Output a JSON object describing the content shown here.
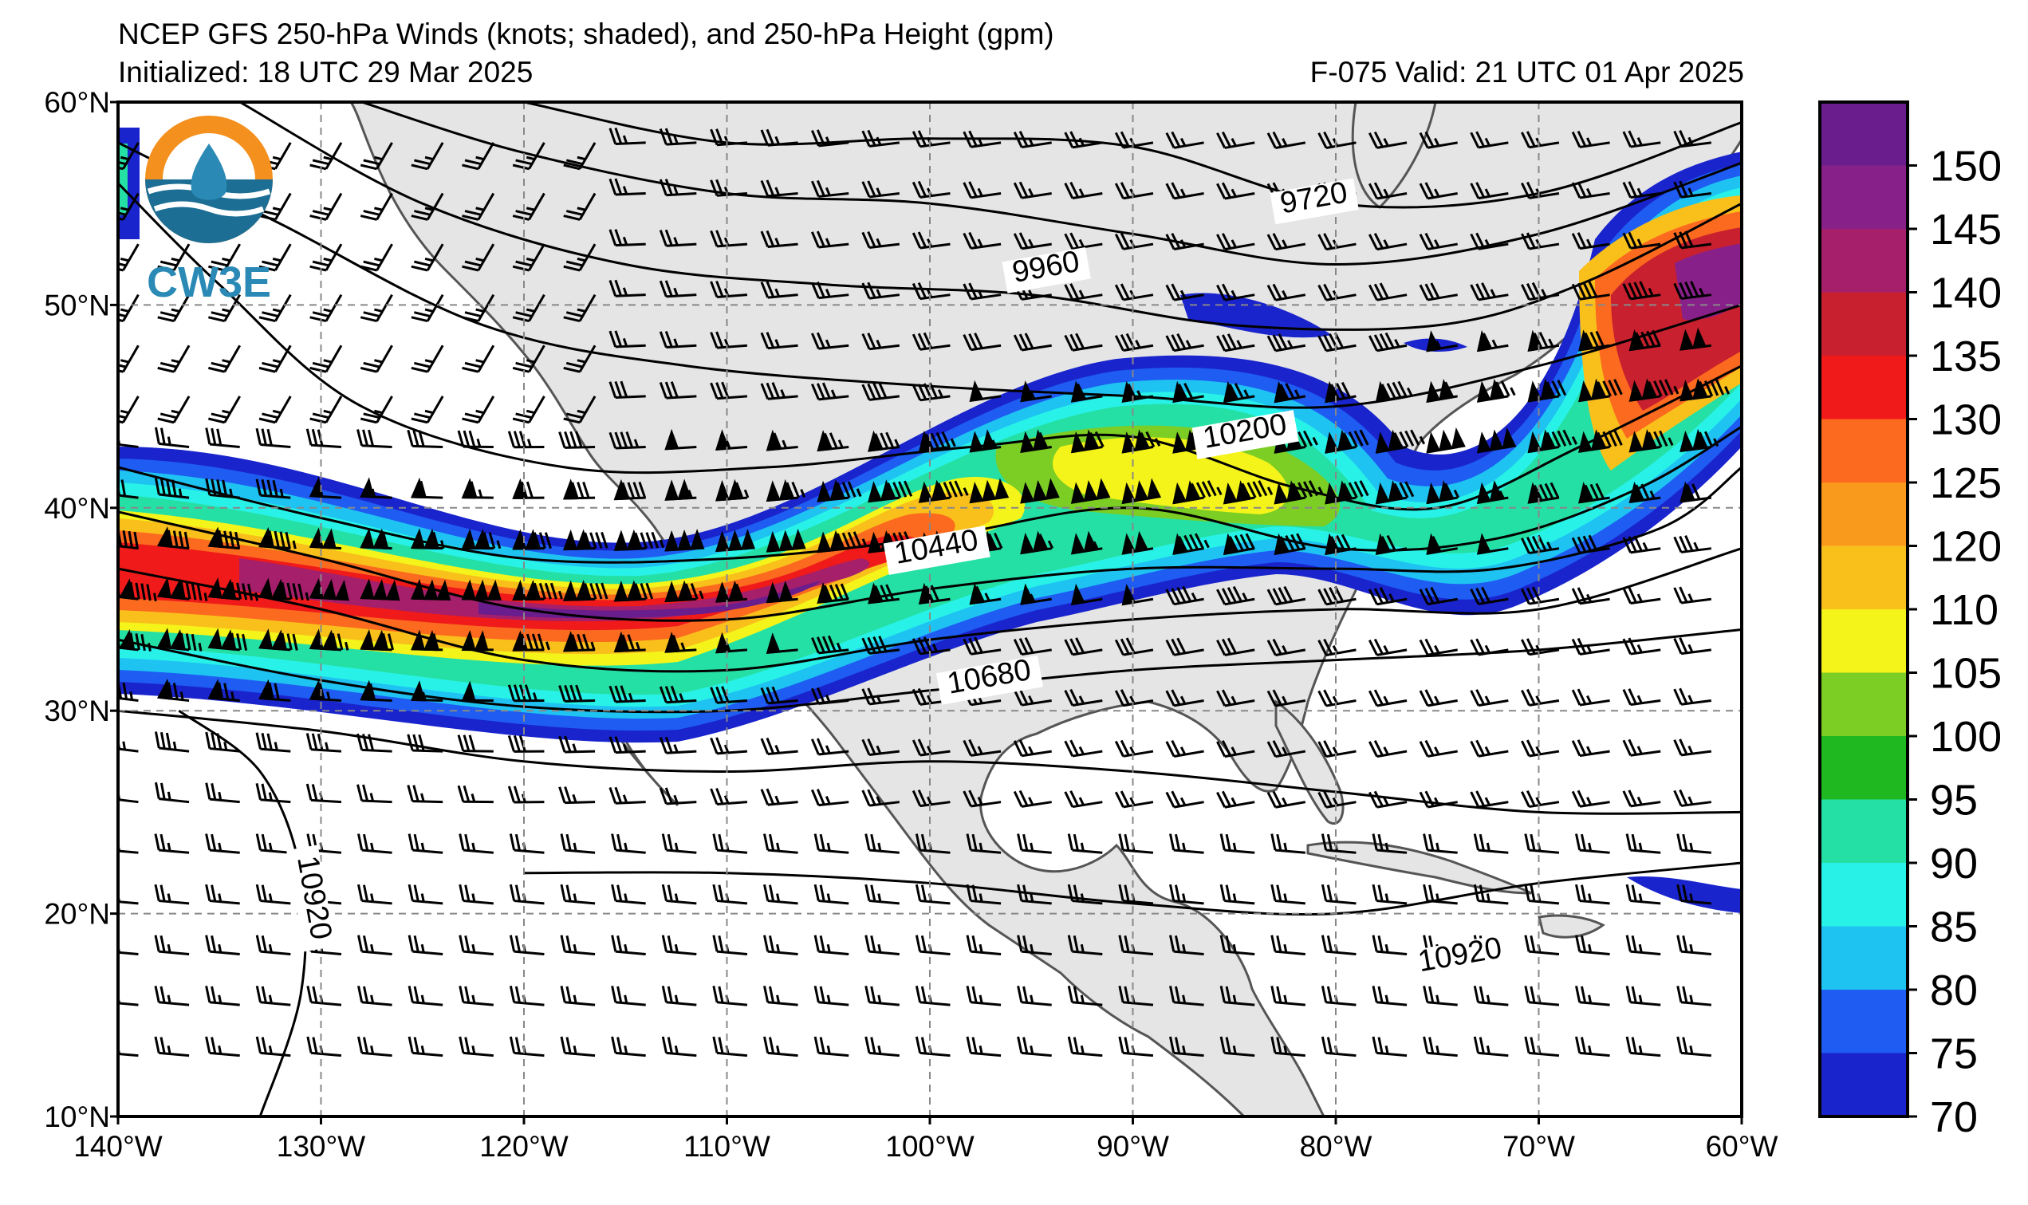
{
  "title": {
    "line1": "NCEP GFS 250-hPa Winds (knots; shaded), and 250-hPa Height (gpm)",
    "initialized": "Initialized: 18 UTC 29 Mar 2025",
    "valid": "F-075  Valid: 21 UTC 01 Apr 2025"
  },
  "logo": {
    "text": "CW3E"
  },
  "axes": {
    "lon_labels": [
      "140°W",
      "130°W",
      "120°W",
      "110°W",
      "100°W",
      "90°W",
      "80°W",
      "70°W",
      "60°W"
    ],
    "lat_labels": [
      "60°N",
      "50°N",
      "40°N",
      "30°N",
      "20°N",
      "10°N"
    ],
    "lon_range": [
      -140,
      -60
    ],
    "lat_range": [
      10,
      60
    ]
  },
  "colorbar": {
    "labels": [
      "150",
      "145",
      "140",
      "135",
      "130",
      "125",
      "120",
      "110",
      "105",
      "100",
      "95",
      "90",
      "85",
      "80",
      "75",
      "70"
    ],
    "colors": [
      "#6a1d8c",
      "#88208a",
      "#a51f6a",
      "#c8202f",
      "#f01a1a",
      "#fb6a1e",
      "#f99a1d",
      "#f9c01c",
      "#f4f41a",
      "#7ccd24",
      "#20b820",
      "#25e0a4",
      "#28f2e8",
      "#1ec3f2",
      "#1e5cf2",
      "#1a24cc"
    ]
  },
  "contour_labels": [
    {
      "text": "9720",
      "lon": -81,
      "lat": 54.8
    },
    {
      "text": "9960",
      "lon": -94.2,
      "lat": 51.4
    },
    {
      "text": "10200",
      "lon": -84.4,
      "lat": 43.3
    },
    {
      "text": "10440",
      "lon": -99.6,
      "lat": 37.6
    },
    {
      "text": "10680",
      "lon": -97,
      "lat": 31.2
    },
    {
      "text": "10920",
      "lon": -73.8,
      "lat": 17.5
    },
    {
      "text": "10920",
      "lon": -130.8,
      "lat": 20.7
    }
  ],
  "contour_lines": [
    {
      "value": 9720,
      "pts": [
        [
          -120,
          60
        ],
        [
          -110,
          58
        ],
        [
          -100,
          58.2
        ],
        [
          -90,
          57.8
        ],
        [
          -80,
          55
        ],
        [
          -70,
          55.5
        ],
        [
          -60,
          59
        ]
      ]
    },
    {
      "value": 9840,
      "pts": [
        [
          -128,
          60
        ],
        [
          -120,
          57.5
        ],
        [
          -110,
          55.5
        ],
        [
          -100,
          55
        ],
        [
          -90,
          53.5
        ],
        [
          -80,
          52
        ],
        [
          -70,
          53.5
        ],
        [
          -60,
          57
        ]
      ]
    },
    {
      "value": 9960,
      "pts": [
        [
          -134,
          60
        ],
        [
          -125,
          55
        ],
        [
          -115,
          52
        ],
        [
          -105,
          51
        ],
        [
          -95,
          50.5
        ],
        [
          -85,
          49
        ],
        [
          -75,
          49
        ],
        [
          -68,
          51
        ],
        [
          -60,
          55
        ]
      ]
    },
    {
      "value": 10080,
      "pts": [
        [
          -140,
          58
        ],
        [
          -132,
          54
        ],
        [
          -122,
          49
        ],
        [
          -112,
          47
        ],
        [
          -100,
          46
        ],
        [
          -90,
          45.5
        ],
        [
          -80,
          45
        ],
        [
          -70,
          47
        ],
        [
          -60,
          50
        ]
      ]
    },
    {
      "value": 10200,
      "pts": [
        [
          -140,
          56
        ],
        [
          -135,
          51
        ],
        [
          -128,
          45
        ],
        [
          -118,
          42
        ],
        [
          -108,
          42
        ],
        [
          -98,
          43
        ],
        [
          -90,
          43.5
        ],
        [
          -82,
          41
        ],
        [
          -75,
          40
        ],
        [
          -68,
          43
        ],
        [
          -60,
          47
        ]
      ]
    },
    {
      "value": 10320,
      "pts": [
        [
          -140,
          42
        ],
        [
          -130,
          39.5
        ],
        [
          -120,
          37.5
        ],
        [
          -110,
          37.5
        ],
        [
          -100,
          38.5
        ],
        [
          -90,
          40
        ],
        [
          -80,
          38
        ],
        [
          -72,
          38.5
        ],
        [
          -65,
          41
        ],
        [
          -60,
          44
        ]
      ]
    },
    {
      "value": 10440,
      "pts": [
        [
          -140,
          39.8
        ],
        [
          -130,
          37.5
        ],
        [
          -120,
          35
        ],
        [
          -110,
          34.5
        ],
        [
          -100,
          36
        ],
        [
          -90,
          37
        ],
        [
          -80,
          37
        ],
        [
          -72,
          37
        ],
        [
          -64,
          39
        ],
        [
          -60,
          42
        ]
      ]
    },
    {
      "value": 10560,
      "pts": [
        [
          -140,
          37
        ],
        [
          -130,
          35
        ],
        [
          -120,
          32.5
        ],
        [
          -110,
          32
        ],
        [
          -100,
          33.5
        ],
        [
          -90,
          34.5
        ],
        [
          -80,
          35
        ],
        [
          -70,
          35
        ],
        [
          -60,
          38
        ]
      ]
    },
    {
      "value": 10680,
      "pts": [
        [
          -140,
          33.5
        ],
        [
          -130,
          31.5
        ],
        [
          -120,
          30.2
        ],
        [
          -110,
          30
        ],
        [
          -100,
          31
        ],
        [
          -90,
          32
        ],
        [
          -80,
          32.5
        ],
        [
          -70,
          33
        ],
        [
          -60,
          34
        ]
      ]
    },
    {
      "value": 10800,
      "pts": [
        [
          -140,
          30
        ],
        [
          -130,
          29
        ],
        [
          -120,
          27.5
        ],
        [
          -110,
          27
        ],
        [
          -100,
          27.5
        ],
        [
          -90,
          27
        ],
        [
          -80,
          26
        ],
        [
          -70,
          25
        ],
        [
          -60,
          25
        ]
      ]
    },
    {
      "value": 10920,
      "pts": [
        [
          -120,
          22
        ],
        [
          -110,
          22
        ],
        [
          -100,
          21.5
        ],
        [
          -90,
          20.5
        ],
        [
          -80,
          20
        ],
        [
          -70,
          21.5
        ],
        [
          -60,
          22.5
        ]
      ]
    },
    {
      "value": 10920,
      "pts": [
        [
          -133,
          10
        ],
        [
          -131,
          16
        ],
        [
          -131,
          22
        ],
        [
          -133,
          27
        ],
        [
          -137,
          30
        ]
      ]
    }
  ]
}
